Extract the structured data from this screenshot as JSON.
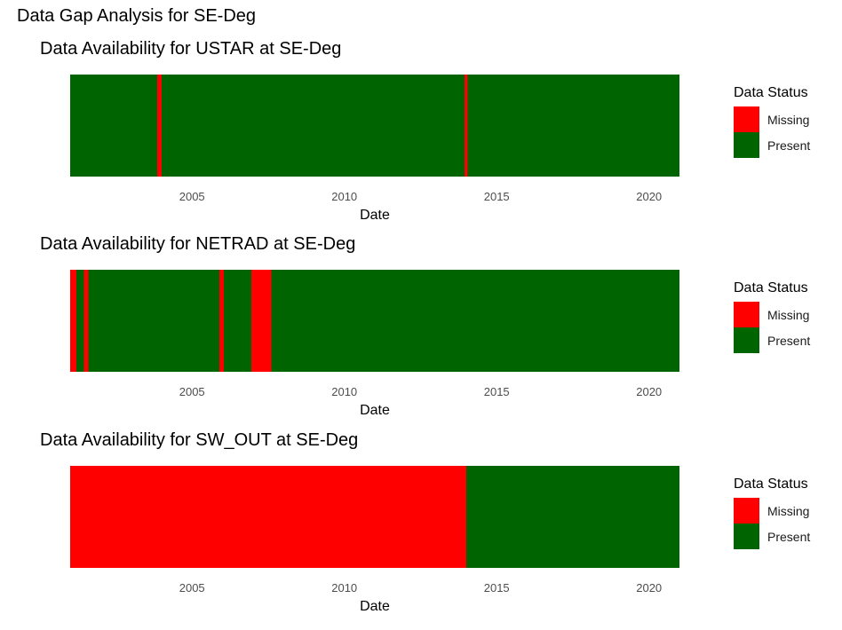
{
  "title": "Data Gap Analysis for SE-Deg",
  "colors": {
    "Missing": "#ff0000",
    "Present": "#006400"
  },
  "chart_data": [
    {
      "type": "bar",
      "title": "Data Availability for USTAR at SE-Deg",
      "xlabel": "Date",
      "xlim": [
        2001.0,
        2021.0
      ],
      "xticks": [
        2005,
        2010,
        2015,
        2020
      ],
      "grid": false,
      "legend": {
        "title": "Data Status",
        "position": "right",
        "entries": [
          "Missing",
          "Present"
        ]
      },
      "segments": [
        {
          "start": 2001.0,
          "end": 2003.85,
          "status": "Present"
        },
        {
          "start": 2003.85,
          "end": 2004.0,
          "status": "Missing"
        },
        {
          "start": 2004.0,
          "end": 2013.95,
          "status": "Present"
        },
        {
          "start": 2013.95,
          "end": 2014.05,
          "status": "Missing"
        },
        {
          "start": 2014.05,
          "end": 2021.0,
          "status": "Present"
        }
      ]
    },
    {
      "type": "bar",
      "title": "Data Availability for NETRAD at SE-Deg",
      "xlabel": "Date",
      "xlim": [
        2001.0,
        2021.0
      ],
      "xticks": [
        2005,
        2010,
        2015,
        2020
      ],
      "grid": false,
      "legend": {
        "title": "Data Status",
        "position": "right",
        "entries": [
          "Missing",
          "Present"
        ]
      },
      "segments": [
        {
          "start": 2001.0,
          "end": 2001.2,
          "status": "Missing"
        },
        {
          "start": 2001.2,
          "end": 2001.45,
          "status": "Present"
        },
        {
          "start": 2001.45,
          "end": 2001.6,
          "status": "Missing"
        },
        {
          "start": 2001.6,
          "end": 2005.9,
          "status": "Present"
        },
        {
          "start": 2005.9,
          "end": 2006.05,
          "status": "Missing"
        },
        {
          "start": 2006.05,
          "end": 2006.95,
          "status": "Present"
        },
        {
          "start": 2006.95,
          "end": 2007.6,
          "status": "Missing"
        },
        {
          "start": 2007.6,
          "end": 2021.0,
          "status": "Present"
        }
      ]
    },
    {
      "type": "bar",
      "title": "Data Availability for SW_OUT at SE-Deg",
      "xlabel": "Date",
      "xlim": [
        2001.0,
        2021.0
      ],
      "xticks": [
        2005,
        2010,
        2015,
        2020
      ],
      "grid": false,
      "legend": {
        "title": "Data Status",
        "position": "right",
        "entries": [
          "Missing",
          "Present"
        ]
      },
      "segments": [
        {
          "start": 2001.0,
          "end": 2014.0,
          "status": "Missing"
        },
        {
          "start": 2014.0,
          "end": 2021.0,
          "status": "Present"
        }
      ]
    }
  ]
}
